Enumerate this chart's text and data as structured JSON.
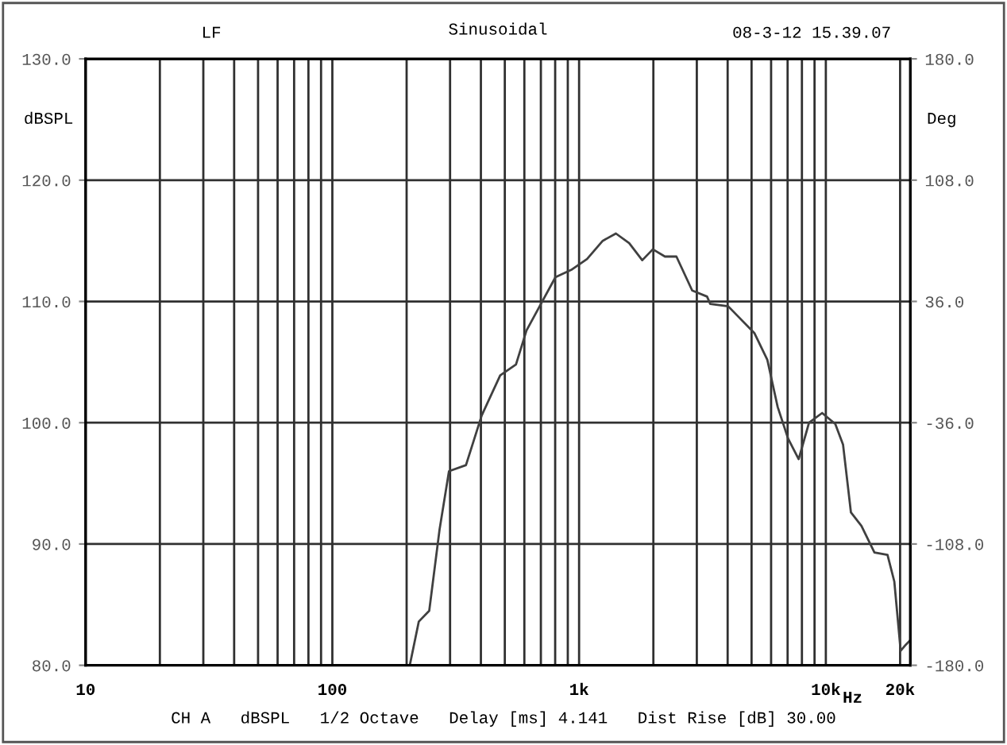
{
  "chart_data": {
    "type": "line",
    "title": "Sinusoidal",
    "annotations": [
      "LF",
      "08-3-12 15.39.07",
      "CH A   dBSPL   1/2 Octave   Delay [ms] 4.141   Dist Rise [dB] 30.00"
    ],
    "xlabel": "Hz",
    "ylabel": "dBSPL",
    "y2label": "Deg",
    "log": "x",
    "grid": true,
    "marker": "none",
    "line_style": "solid",
    "xlim": [
      10,
      22000
    ],
    "ylim": [
      80,
      130
    ],
    "y2lim": [
      -180,
      180
    ],
    "xticks": [
      {
        "value": 10,
        "label": "10"
      },
      {
        "value": 20,
        "label": null
      },
      {
        "value": 30,
        "label": null
      },
      {
        "value": 40,
        "label": null
      },
      {
        "value": 50,
        "label": null
      },
      {
        "value": 60,
        "label": null
      },
      {
        "value": 70,
        "label": null
      },
      {
        "value": 80,
        "label": null
      },
      {
        "value": 90,
        "label": null
      },
      {
        "value": 100,
        "label": "100"
      },
      {
        "value": 200,
        "label": null
      },
      {
        "value": 300,
        "label": null
      },
      {
        "value": 400,
        "label": null
      },
      {
        "value": 500,
        "label": null
      },
      {
        "value": 600,
        "label": null
      },
      {
        "value": 700,
        "label": null
      },
      {
        "value": 800,
        "label": null
      },
      {
        "value": 900,
        "label": null
      },
      {
        "value": 1000,
        "label": "1k"
      },
      {
        "value": 2000,
        "label": null
      },
      {
        "value": 3000,
        "label": null
      },
      {
        "value": 4000,
        "label": null
      },
      {
        "value": 5000,
        "label": null
      },
      {
        "value": 6000,
        "label": null
      },
      {
        "value": 7000,
        "label": null
      },
      {
        "value": 8000,
        "label": null
      },
      {
        "value": 9000,
        "label": null
      },
      {
        "value": 10000,
        "label": "10k"
      },
      {
        "value": 20000,
        "label": "20k"
      }
    ],
    "yticks": [
      {
        "value": 80,
        "label": "80.0"
      },
      {
        "value": 90,
        "label": "90.0"
      },
      {
        "value": 100,
        "label": "100.0"
      },
      {
        "value": 110,
        "label": "110.0"
      },
      {
        "value": 120,
        "label": "120.0"
      },
      {
        "value": 130,
        "label": "130.0"
      }
    ],
    "y2ticks": [
      {
        "value": 180,
        "label": "180.0"
      },
      {
        "value": 108,
        "label": "108.0"
      },
      {
        "value": 36,
        "label": "36.0"
      },
      {
        "value": -36,
        "label": "-36.0"
      },
      {
        "value": -108,
        "label": "-108.0"
      },
      {
        "value": -180,
        "label": "-180.0"
      }
    ],
    "series": [
      {
        "color": "#404040",
        "x": [
          206,
          224,
          247,
          272,
          297,
          348,
          403,
          479,
          555,
          612,
          692,
          802,
          929,
          1077,
          1247,
          1410,
          1596,
          1803,
          1990,
          2228,
          2480,
          2873,
          3300,
          3400,
          4020,
          5130,
          5790,
          6380,
          7030,
          7760,
          8550,
          9660,
          10920,
          11740,
          12640,
          13940,
          15740,
          17780,
          18950,
          20100,
          21100,
          21800
        ],
        "values": [
          80.0,
          83.6,
          84.5,
          91.2,
          96.0,
          96.5,
          100.6,
          103.9,
          104.8,
          107.6,
          109.6,
          112.0,
          112.6,
          113.5,
          115.0,
          115.6,
          114.8,
          113.4,
          114.3,
          113.7,
          113.7,
          110.9,
          110.4,
          109.8,
          109.6,
          107.4,
          105.2,
          101.3,
          98.7,
          97.0,
          100.0,
          100.8,
          99.9,
          98.2,
          92.6,
          91.5,
          89.3,
          89.1,
          86.9,
          81.2,
          81.7,
          82.0
        ]
      }
    ]
  }
}
